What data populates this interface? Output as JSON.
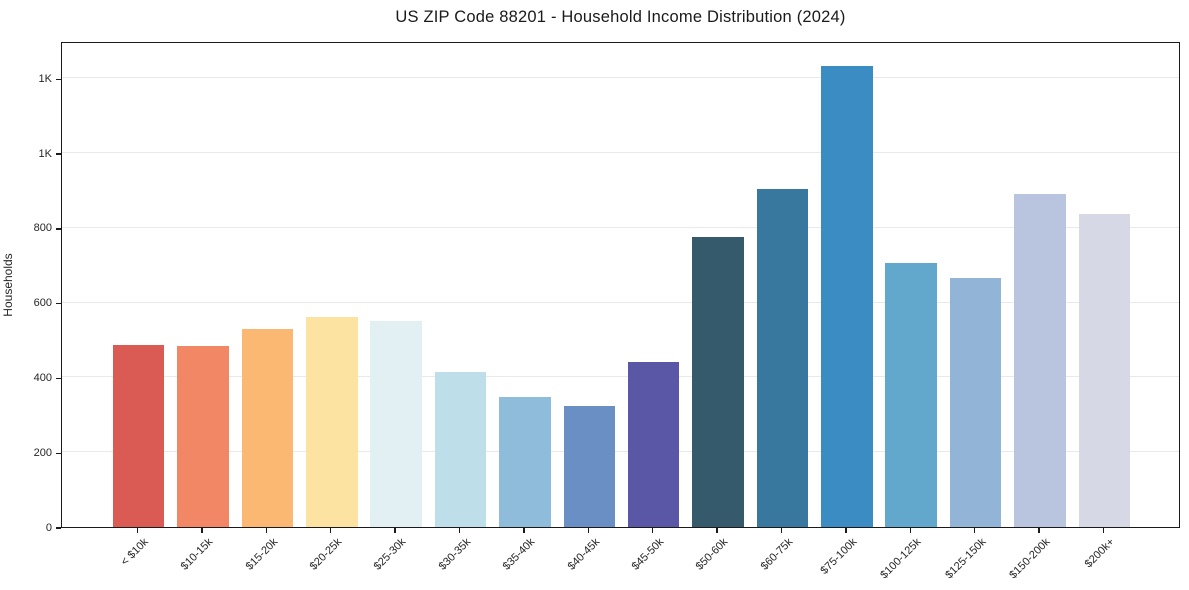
{
  "title": "US ZIP Code 88201 - Household Income Distribution (2024)",
  "chart_data": {
    "type": "bar",
    "title": "US ZIP Code 88201 - Household Income Distribution (2024)",
    "xlabel": "",
    "ylabel": "Households",
    "categories": [
      "< $10k",
      "$10-15k",
      "$15-20k",
      "$20-25k",
      "$25-30k",
      "$30-35k",
      "$35-40k",
      "$40-45k",
      "$45-50k",
      "$50-60k",
      "$60-75k",
      "$75-100k",
      "$100-125k",
      "$125-150k",
      "$150-200k",
      "$200k+"
    ],
    "values": [
      487,
      484,
      530,
      562,
      551,
      415,
      347,
      325,
      441,
      775,
      905,
      1232,
      705,
      666,
      890,
      838
    ],
    "bar_colors": [
      "#d95b53",
      "#f18764",
      "#fbb873",
      "#fce3a2",
      "#e3f0f3",
      "#bedfe9",
      "#8fbcdb",
      "#6a8fc5",
      "#5a57a7",
      "#355a6c",
      "#38789f",
      "#3a8cc3",
      "#62a8cc",
      "#92b4d7",
      "#b9c5de",
      "#d7d8e5"
    ],
    "ylim": [
      0,
      1300
    ],
    "yticks": [
      {
        "value": 0,
        "label": "0"
      },
      {
        "value": 200,
        "label": "200"
      },
      {
        "value": 400,
        "label": "400"
      },
      {
        "value": 600,
        "label": "600"
      },
      {
        "value": 800,
        "label": "800"
      },
      {
        "value": 1000,
        "label": "1K"
      },
      {
        "value": 1200,
        "label": "1K"
      }
    ],
    "grid": "horizontal",
    "legend": "none",
    "xtick_rotation": 45
  },
  "colors": {
    "background": "#ffffff",
    "frame": "#1a1a1a",
    "grid": "#e9e9ec",
    "text": "#262626"
  }
}
